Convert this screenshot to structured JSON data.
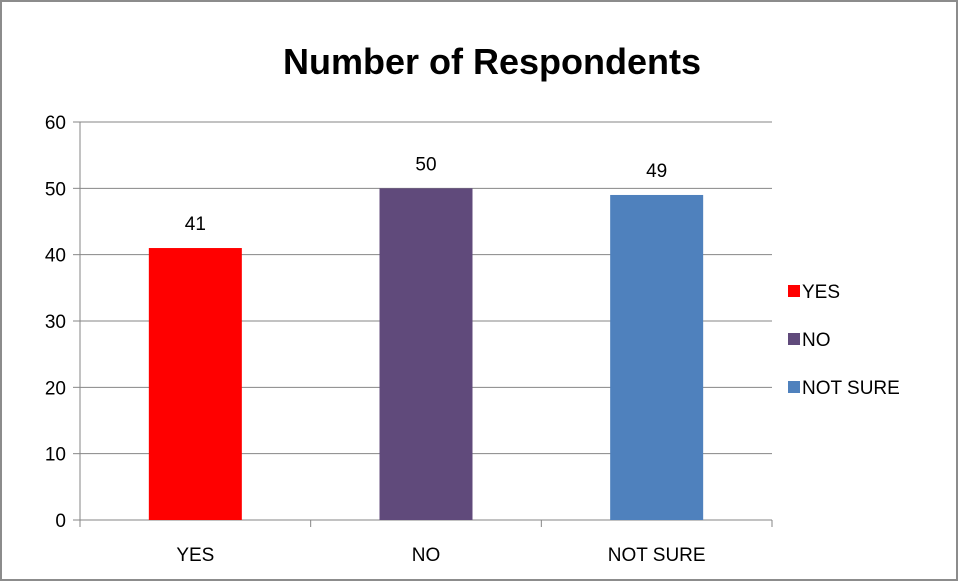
{
  "chart_data": {
    "type": "bar",
    "title": "Number of Respondents",
    "xlabel": "",
    "ylabel": "",
    "categories": [
      "YES",
      "NO",
      "NOT SURE"
    ],
    "values": [
      41,
      50,
      49
    ],
    "colors": [
      "#ff0000",
      "#604a7b",
      "#4f81bd"
    ],
    "ylim": [
      0,
      60
    ],
    "y_ticks": [
      0,
      10,
      20,
      30,
      40,
      50,
      60
    ],
    "grid": true,
    "data_labels": true,
    "legend": {
      "position": "right",
      "entries": [
        {
          "label": "YES",
          "color": "#ff0000"
        },
        {
          "label": "NO",
          "color": "#604a7b"
        },
        {
          "label": "NOT SURE",
          "color": "#4f81bd"
        }
      ]
    }
  }
}
